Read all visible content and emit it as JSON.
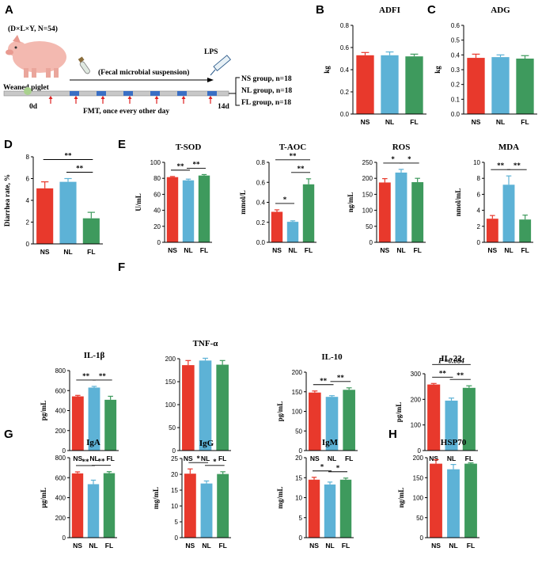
{
  "colors": {
    "NS": "#e8392c",
    "NL": "#5db2d6",
    "FL": "#3e9a5d"
  },
  "schematic": {
    "panel": "A",
    "pig_label": "(D×L×Y, N=54)",
    "suspension_label": "(Fecal microbial suspension)",
    "weaned_label": "Weaned piglet",
    "day0": "0d",
    "day14": "14d",
    "fmt_label": "FMT, once every other day",
    "lps_label": "LPS",
    "groups": [
      "NS group, n=18",
      "NL group, n=18",
      "FL group, n=18"
    ]
  },
  "chart_data": [
    {
      "panel": "B",
      "type": "bar",
      "title": "ADFI",
      "ylabel": "kg",
      "categories": [
        "NS",
        "NL",
        "FL"
      ],
      "values": [
        0.53,
        0.53,
        0.52
      ],
      "errors": [
        0.025,
        0.03,
        0.02
      ],
      "ylim": [
        0,
        0.8
      ],
      "yticks": [
        "0.0",
        "0.2",
        "0.4",
        "0.6",
        "0.8"
      ],
      "sig": []
    },
    {
      "panel": "C",
      "type": "bar",
      "title": "ADG",
      "ylabel": "kg",
      "categories": [
        "NS",
        "NL",
        "FL"
      ],
      "values": [
        0.38,
        0.385,
        0.375
      ],
      "errors": [
        0.025,
        0.015,
        0.02
      ],
      "ylim": [
        0,
        0.6
      ],
      "yticks": [
        "0.0",
        "0.1",
        "0.2",
        "0.3",
        "0.4",
        "0.5",
        "0.6"
      ],
      "sig": []
    },
    {
      "panel": "D",
      "type": "bar",
      "title": "",
      "ylabel": "Diarrhea rate, %",
      "categories": [
        "NS",
        "NL",
        "FL"
      ],
      "values": [
        5.1,
        5.7,
        2.35
      ],
      "errors": [
        0.6,
        0.3,
        0.55
      ],
      "ylim": [
        0,
        8
      ],
      "yticks": [
        "0",
        "2",
        "4",
        "6",
        "8"
      ],
      "sig": [
        {
          "from": 0,
          "to": 2,
          "label": "**"
        },
        {
          "from": 1,
          "to": 2,
          "label": "**"
        }
      ]
    },
    {
      "panel": "E",
      "type": "bar",
      "title": "T-SOD",
      "ylabel": "U/mL",
      "categories": [
        "NS",
        "NL",
        "FL"
      ],
      "values": [
        81.5,
        77.5,
        83.5
      ],
      "errors": [
        0.8,
        1.5,
        1.2
      ],
      "ylim": [
        0,
        100
      ],
      "yticks": [
        "0",
        "20",
        "40",
        "60",
        "80",
        "100"
      ],
      "sig": [
        {
          "from": 0,
          "to": 1,
          "label": "**"
        },
        {
          "from": 1,
          "to": 2,
          "label": "**"
        }
      ]
    },
    {
      "panel": "",
      "type": "bar",
      "title": "T-AOC",
      "ylabel": "mmol/L",
      "categories": [
        "NS",
        "NL",
        "FL"
      ],
      "values": [
        0.305,
        0.205,
        0.58
      ],
      "errors": [
        0.02,
        0.01,
        0.055
      ],
      "ylim": [
        0,
        0.8
      ],
      "yticks": [
        "0.0",
        "0.2",
        "0.4",
        "0.6",
        "0.8"
      ],
      "sig": [
        {
          "from": 0,
          "to": 1,
          "label": "*"
        },
        {
          "from": 1,
          "to": 2,
          "label": "**"
        },
        {
          "from": 0,
          "to": 2,
          "label": "**"
        }
      ]
    },
    {
      "panel": "",
      "type": "bar",
      "title": "ROS",
      "ylabel": "ng/mL",
      "categories": [
        "NS",
        "NL",
        "FL"
      ],
      "values": [
        187,
        218,
        188
      ],
      "errors": [
        12,
        10,
        12
      ],
      "ylim": [
        0,
        250
      ],
      "yticks": [
        "0",
        "50",
        "100",
        "150",
        "200",
        "250"
      ],
      "sig": [
        {
          "from": 0,
          "to": 1,
          "label": "*"
        },
        {
          "from": 1,
          "to": 2,
          "label": "*"
        }
      ]
    },
    {
      "panel": "",
      "type": "bar",
      "title": "MDA",
      "ylabel": "nmol/mL",
      "categories": [
        "NS",
        "NL",
        "FL"
      ],
      "values": [
        2.95,
        7.2,
        2.85
      ],
      "errors": [
        0.4,
        1.1,
        0.55
      ],
      "ylim": [
        0,
        10
      ],
      "yticks": [
        "0",
        "2",
        "4",
        "6",
        "8",
        "10"
      ],
      "sig": [
        {
          "from": 0,
          "to": 1,
          "label": "**"
        },
        {
          "from": 1,
          "to": 2,
          "label": "**"
        }
      ]
    },
    {
      "panel": "F",
      "type": "bar",
      "title": "IL-1β",
      "ylabel": "pg/mL",
      "categories": [
        "NS",
        "NL",
        "FL"
      ],
      "values": [
        542,
        630,
        508
      ],
      "errors": [
        10,
        12,
        35
      ],
      "ylim": [
        0,
        800
      ],
      "yticks": [
        "0",
        "200",
        "400",
        "600",
        "800"
      ],
      "sig": [
        {
          "from": 0,
          "to": 1,
          "label": "**"
        },
        {
          "from": 1,
          "to": 2,
          "label": "**"
        }
      ]
    },
    {
      "panel": "",
      "type": "bar",
      "title": "TNF-α",
      "ylabel": "",
      "categories": [
        "NS",
        "NL",
        "FL"
      ],
      "values": [
        186,
        196,
        187
      ],
      "errors": [
        10,
        5,
        9
      ],
      "ylim": [
        0,
        200
      ],
      "yticks": [
        "0",
        "50",
        "100",
        "150",
        "200"
      ],
      "sig": []
    },
    {
      "panel": "",
      "type": "bar",
      "title": "IL-10",
      "ylabel": "pg/mL",
      "categories": [
        "NS",
        "NL",
        "FL"
      ],
      "values": [
        148,
        137,
        155
      ],
      "errors": [
        4,
        3,
        5
      ],
      "ylim": [
        0,
        200
      ],
      "yticks": [
        "0",
        "50",
        "100",
        "150",
        "200"
      ],
      "sig": [
        {
          "from": 0,
          "to": 1,
          "label": "**"
        },
        {
          "from": 1,
          "to": 2,
          "label": "**"
        }
      ]
    },
    {
      "panel": "",
      "type": "bar",
      "title": "IL-22",
      "ylabel": "pg/mL",
      "categories": [
        "NS",
        "NL",
        "FL"
      ],
      "values": [
        258,
        195,
        245
      ],
      "errors": [
        4,
        10,
        8
      ],
      "ylim": [
        0,
        300
      ],
      "yticks": [
        "0",
        "100",
        "200",
        "300"
      ],
      "sig": [
        {
          "from": 0,
          "to": 1,
          "label": "**"
        },
        {
          "from": 1,
          "to": 2,
          "label": "**"
        },
        {
          "from": 0,
          "to": 2,
          "label": "P =0.084"
        }
      ]
    },
    {
      "panel": "G",
      "type": "bar",
      "title": "IgA",
      "ylabel": "μg/mL",
      "categories": [
        "NS",
        "NL",
        "FL"
      ],
      "values": [
        643,
        535,
        645
      ],
      "errors": [
        15,
        40,
        15
      ],
      "ylim": [
        0,
        800
      ],
      "yticks": [
        "0",
        "200",
        "400",
        "600",
        "800"
      ],
      "sig": [
        {
          "from": 0,
          "to": 1,
          "label": "**"
        },
        {
          "from": 1,
          "to": 2,
          "label": "**"
        }
      ]
    },
    {
      "panel": "",
      "type": "bar",
      "title": "IgG",
      "ylabel": "mg/mL",
      "categories": [
        "NS",
        "NL",
        "FL"
      ],
      "values": [
        20.2,
        17.1,
        20.1
      ],
      "errors": [
        1.5,
        0.8,
        0.7
      ],
      "ylim": [
        0,
        25
      ],
      "yticks": [
        "0",
        "5",
        "10",
        "15",
        "20",
        "25"
      ],
      "sig": [
        {
          "from": 0,
          "to": 1,
          "label": "*"
        },
        {
          "from": 1,
          "to": 2,
          "label": "*"
        }
      ]
    },
    {
      "panel": "",
      "type": "bar",
      "title": "IgM",
      "ylabel": "mg/mL",
      "categories": [
        "NS",
        "NL",
        "FL"
      ],
      "values": [
        14.5,
        13.3,
        14.5
      ],
      "errors": [
        0.6,
        0.6,
        0.4
      ],
      "ylim": [
        0,
        20
      ],
      "yticks": [
        "0",
        "5",
        "10",
        "15",
        "20"
      ],
      "sig": [
        {
          "from": 0,
          "to": 1,
          "label": "*"
        },
        {
          "from": 1,
          "to": 2,
          "label": "*"
        }
      ]
    },
    {
      "panel": "H",
      "type": "bar",
      "title": "HSP70",
      "ylabel": "ng/mL",
      "categories": [
        "NS",
        "NL",
        "FL"
      ],
      "values": [
        185,
        171,
        185
      ],
      "errors": [
        10,
        12,
        2
      ],
      "ylim": [
        0,
        200
      ],
      "yticks": [
        "0",
        "50",
        "100",
        "150",
        "200"
      ],
      "sig": []
    }
  ]
}
